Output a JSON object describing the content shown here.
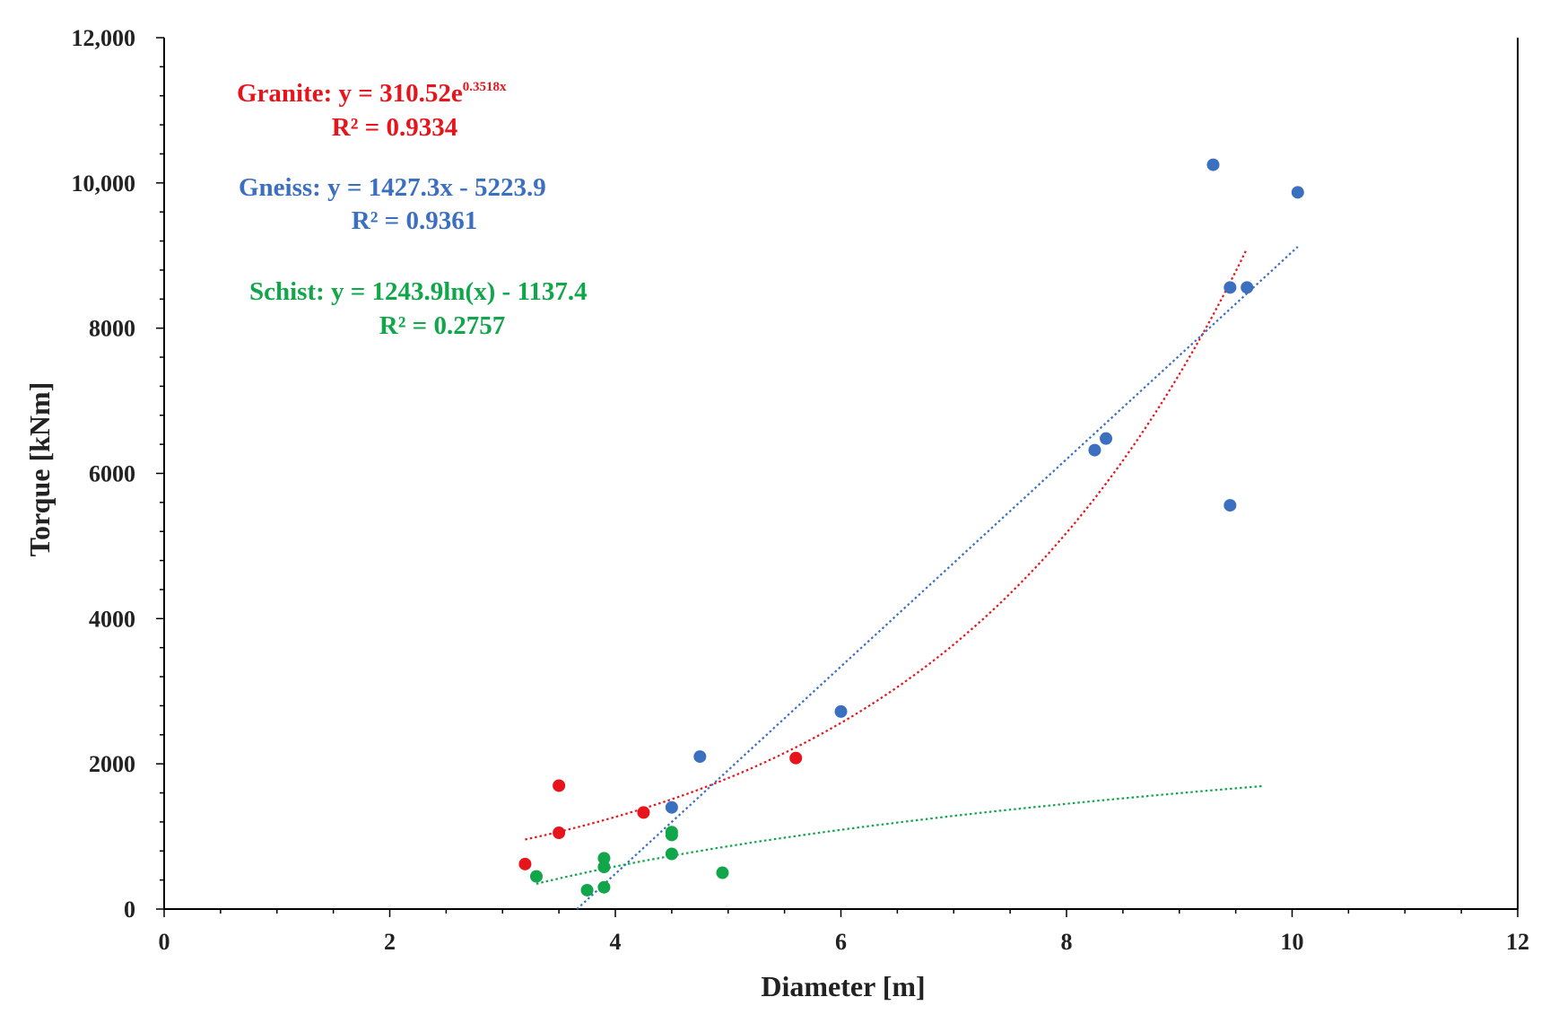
{
  "chart_data": {
    "type": "scatter",
    "title": "",
    "xlabel": "Diameter [m]",
    "ylabel": "Torque [kNm]",
    "xlim": [
      0,
      12
    ],
    "ylim": [
      0,
      12000
    ],
    "grid": false,
    "x_ticks": [
      {
        "value": 0,
        "label": "0"
      },
      {
        "value": 2,
        "label": "2"
      },
      {
        "value": 4,
        "label": "4"
      },
      {
        "value": 6,
        "label": "6"
      },
      {
        "value": 8,
        "label": "8"
      },
      {
        "value": 10,
        "label": "10"
      },
      {
        "value": 12,
        "label": "12"
      }
    ],
    "y_ticks": [
      {
        "value": 0,
        "label": "0"
      },
      {
        "value": 2000,
        "label": "2000"
      },
      {
        "value": 4000,
        "label": "4000"
      },
      {
        "value": 6000,
        "label": "6000"
      },
      {
        "value": 8000,
        "label": "8000"
      },
      {
        "value": 10000,
        "label": "10,000"
      },
      {
        "value": 12000,
        "label": "12,000"
      }
    ],
    "series": [
      {
        "name": "Granite",
        "color": "#e8141b",
        "points": [
          [
            3.2,
            620
          ],
          [
            3.5,
            1050
          ],
          [
            3.5,
            1700
          ],
          [
            4.25,
            1330
          ],
          [
            5.6,
            2080
          ]
        ],
        "trend": {
          "kind": "exponential",
          "a": 310.52,
          "b": 0.3518,
          "x_range": [
            3.2,
            9.6
          ]
        },
        "equation_main": "Granite: y = 310.52e",
        "equation_sup": "0.3518x",
        "r2": "R² = 0.9334"
      },
      {
        "name": "Gneiss",
        "color": "#3b6fc0",
        "points": [
          [
            4.5,
            1400
          ],
          [
            4.75,
            2100
          ],
          [
            6.0,
            2720
          ],
          [
            8.25,
            6320
          ],
          [
            8.35,
            6480
          ],
          [
            9.3,
            10250
          ],
          [
            9.45,
            8560
          ],
          [
            9.6,
            8560
          ],
          [
            9.45,
            5560
          ],
          [
            10.05,
            9870
          ]
        ],
        "trend": {
          "kind": "linear",
          "m": 1427.3,
          "c": -5223.9,
          "x_range": [
            3.66,
            10.05
          ]
        },
        "equation_main": "Gneiss: y = 1427.3x - 5223.9",
        "r2": "R² = 0.9361"
      },
      {
        "name": "Schist",
        "color": "#12a64a",
        "points": [
          [
            3.3,
            450
          ],
          [
            3.75,
            260
          ],
          [
            3.9,
            300
          ],
          [
            3.9,
            700
          ],
          [
            3.9,
            580
          ],
          [
            4.5,
            1020
          ],
          [
            4.5,
            1060
          ],
          [
            4.5,
            760
          ],
          [
            4.95,
            500
          ]
        ],
        "trend": {
          "kind": "logarithmic",
          "a": 1243.9,
          "c": -1137.4,
          "x_range": [
            3.3,
            9.75
          ]
        },
        "equation_main": "Schist: y = 1243.9ln(x) - 1137.4",
        "r2": "R² = 0.2757"
      }
    ]
  }
}
